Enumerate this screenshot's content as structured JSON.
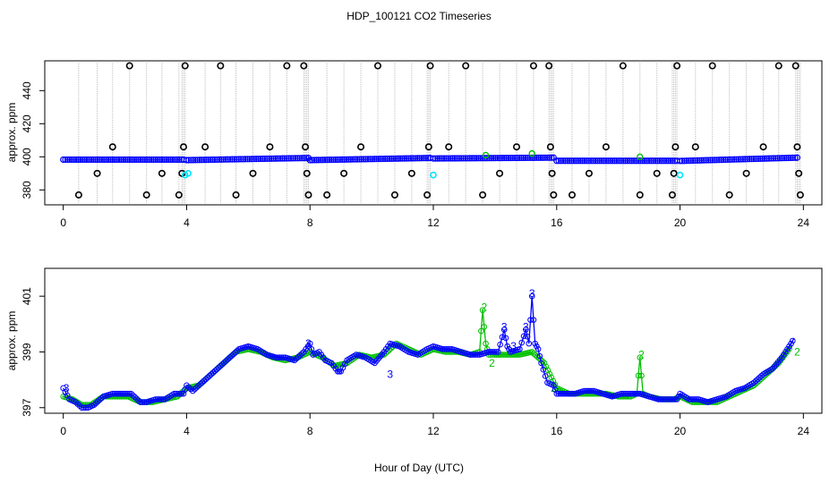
{
  "figure": {
    "title": "HDP_100121  CO2 Timeseries",
    "xlabel": "Hour of Day (UTC)"
  },
  "colors": {
    "frame": "#000000",
    "vertical_lines": "#bdbdbd",
    "series_blue": "#0000ff",
    "series_green": "#00c000",
    "series_cyan": "#00e5ff",
    "outlier_markers": "#000000"
  },
  "chart_data": [
    {
      "type": "scatter",
      "name": "top",
      "ylabel": "approx. ppm",
      "xlim": [
        -0.6,
        24.6
      ],
      "ylim": [
        371,
        458
      ],
      "x_ticks": [
        0,
        4,
        8,
        12,
        16,
        20,
        24
      ],
      "y_ticks": [
        380,
        400,
        420,
        440
      ],
      "baseline_segments": [
        {
          "x_start": 0.0,
          "x_end": 3.9,
          "y_start": 398.3,
          "y_end": 398.3
        },
        {
          "x_start": 4.0,
          "x_end": 7.95,
          "y_start": 398.0,
          "y_end": 399.3
        },
        {
          "x_start": 8.0,
          "x_end": 11.9,
          "y_start": 398.0,
          "y_end": 399.3
        },
        {
          "x_start": 12.0,
          "x_end": 15.9,
          "y_start": 399.0,
          "y_end": 399.5
        },
        {
          "x_start": 16.0,
          "x_end": 19.9,
          "y_start": 397.6,
          "y_end": 397.6
        },
        {
          "x_start": 20.0,
          "x_end": 23.8,
          "y_start": 397.5,
          "y_end": 399.5
        }
      ],
      "outlier_points": [
        {
          "x": 0.5,
          "y": 377
        },
        {
          "x": 1.1,
          "y": 390
        },
        {
          "x": 1.6,
          "y": 406
        },
        {
          "x": 2.15,
          "y": 455
        },
        {
          "x": 2.7,
          "y": 377
        },
        {
          "x": 3.2,
          "y": 390
        },
        {
          "x": 3.75,
          "y": 377
        },
        {
          "x": 3.85,
          "y": 390
        },
        {
          "x": 3.9,
          "y": 406
        },
        {
          "x": 3.95,
          "y": 455
        },
        {
          "x": 4.6,
          "y": 406
        },
        {
          "x": 5.1,
          "y": 455
        },
        {
          "x": 5.6,
          "y": 377
        },
        {
          "x": 6.15,
          "y": 390
        },
        {
          "x": 6.7,
          "y": 406
        },
        {
          "x": 7.25,
          "y": 455
        },
        {
          "x": 7.8,
          "y": 455
        },
        {
          "x": 7.85,
          "y": 406
        },
        {
          "x": 7.9,
          "y": 390
        },
        {
          "x": 7.95,
          "y": 377
        },
        {
          "x": 8.55,
          "y": 377
        },
        {
          "x": 9.1,
          "y": 390
        },
        {
          "x": 9.65,
          "y": 406
        },
        {
          "x": 10.2,
          "y": 455
        },
        {
          "x": 10.75,
          "y": 377
        },
        {
          "x": 11.3,
          "y": 390
        },
        {
          "x": 11.8,
          "y": 377
        },
        {
          "x": 11.85,
          "y": 406
        },
        {
          "x": 11.9,
          "y": 455
        },
        {
          "x": 12.5,
          "y": 406
        },
        {
          "x": 13.05,
          "y": 455
        },
        {
          "x": 13.6,
          "y": 377
        },
        {
          "x": 14.15,
          "y": 390
        },
        {
          "x": 14.7,
          "y": 406
        },
        {
          "x": 15.25,
          "y": 455
        },
        {
          "x": 15.75,
          "y": 455
        },
        {
          "x": 15.8,
          "y": 406
        },
        {
          "x": 15.85,
          "y": 390
        },
        {
          "x": 15.9,
          "y": 377
        },
        {
          "x": 16.5,
          "y": 377
        },
        {
          "x": 17.05,
          "y": 390
        },
        {
          "x": 17.6,
          "y": 406
        },
        {
          "x": 18.15,
          "y": 455
        },
        {
          "x": 18.7,
          "y": 377
        },
        {
          "x": 19.25,
          "y": 390
        },
        {
          "x": 19.75,
          "y": 377
        },
        {
          "x": 19.8,
          "y": 390
        },
        {
          "x": 19.85,
          "y": 406
        },
        {
          "x": 19.9,
          "y": 455
        },
        {
          "x": 20.5,
          "y": 406
        },
        {
          "x": 21.05,
          "y": 455
        },
        {
          "x": 21.6,
          "y": 377
        },
        {
          "x": 22.15,
          "y": 390
        },
        {
          "x": 22.7,
          "y": 406
        },
        {
          "x": 23.2,
          "y": 455
        },
        {
          "x": 23.75,
          "y": 455
        },
        {
          "x": 23.8,
          "y": 406
        },
        {
          "x": 23.85,
          "y": 390
        },
        {
          "x": 23.9,
          "y": 377
        }
      ],
      "cyan_points": [
        {
          "x": 3.95,
          "y": 389
        },
        {
          "x": 4.05,
          "y": 390
        },
        {
          "x": 12.0,
          "y": 389
        },
        {
          "x": 20.0,
          "y": 389
        }
      ],
      "green_points": [
        {
          "x": 13.7,
          "y": 401
        },
        {
          "x": 15.2,
          "y": 402
        },
        {
          "x": 18.7,
          "y": 400
        }
      ]
    },
    {
      "type": "line",
      "name": "bottom",
      "ylabel": "approx. ppm",
      "xlim": [
        -0.6,
        24.6
      ],
      "ylim": [
        396.8,
        402.0
      ],
      "x_ticks": [
        0,
        4,
        8,
        12,
        16,
        20,
        24
      ],
      "y_ticks": [
        397,
        399,
        401
      ],
      "series": [
        {
          "color_key": "series_blue",
          "x": [
            0.0,
            0.2,
            0.4,
            0.6,
            0.8,
            1.0,
            1.3,
            1.6,
            1.9,
            2.2,
            2.5,
            2.7,
            3.0,
            3.3,
            3.6,
            3.9,
            4.0,
            4.2,
            4.5,
            4.8,
            5.1,
            5.4,
            5.7,
            6.0,
            6.3,
            6.6,
            6.9,
            7.2,
            7.5,
            7.8,
            8.0,
            8.1,
            8.3,
            8.5,
            8.7,
            8.9,
            9.0,
            9.2,
            9.5,
            9.8,
            10.1,
            10.4,
            10.6,
            10.9,
            11.2,
            11.5,
            11.8,
            12.0,
            12.3,
            12.6,
            12.9,
            13.2,
            13.5,
            13.8,
            14.1,
            14.3,
            14.4,
            14.5,
            14.8,
            15.0,
            15.1,
            15.2,
            15.3,
            15.4,
            15.5,
            15.7,
            15.9,
            16.0,
            16.3,
            16.6,
            16.9,
            17.2,
            17.5,
            17.8,
            18.1,
            18.4,
            18.7,
            19.0,
            19.3,
            19.6,
            19.9,
            20.0,
            20.3,
            20.6,
            20.9,
            21.2,
            21.5,
            21.8,
            22.1,
            22.4,
            22.7,
            23.0,
            23.3,
            23.6,
            23.7
          ],
          "y": [
            397.7,
            397.3,
            397.2,
            397.0,
            397.0,
            397.1,
            397.4,
            397.5,
            397.5,
            397.5,
            397.2,
            397.2,
            397.3,
            397.3,
            397.5,
            397.5,
            397.8,
            397.6,
            397.9,
            398.2,
            398.5,
            398.8,
            399.1,
            399.2,
            399.1,
            398.9,
            398.8,
            398.8,
            398.7,
            399.0,
            399.3,
            398.9,
            399.0,
            398.7,
            398.6,
            398.3,
            398.3,
            398.7,
            398.9,
            398.8,
            398.6,
            399.0,
            399.3,
            399.2,
            399.0,
            398.9,
            399.1,
            399.2,
            399.1,
            399.1,
            399.0,
            398.9,
            398.9,
            399.0,
            399.0,
            399.8,
            399.2,
            399.0,
            399.1,
            399.8,
            399.3,
            401.0,
            399.3,
            399.1,
            398.6,
            397.9,
            397.8,
            397.5,
            397.5,
            397.5,
            397.6,
            397.6,
            397.5,
            397.4,
            397.5,
            397.5,
            397.5,
            397.4,
            397.3,
            397.3,
            397.3,
            397.5,
            397.3,
            397.3,
            397.2,
            397.3,
            397.4,
            397.6,
            397.7,
            397.9,
            398.2,
            398.4,
            398.8,
            399.3,
            399.5
          ],
          "labels": [
            {
              "x": 0.1,
              "y": 397.7,
              "text": "3"
            },
            {
              "x": 7.95,
              "y": 399.3,
              "text": "3"
            },
            {
              "x": 10.6,
              "y": 398.2,
              "text": "3"
            },
            {
              "x": 14.3,
              "y": 399.9,
              "text": "3"
            },
            {
              "x": 14.6,
              "y": 399.2,
              "text": "3"
            },
            {
              "x": 15.0,
              "y": 399.9,
              "text": "3"
            },
            {
              "x": 15.2,
              "y": 401.1,
              "text": "3"
            }
          ]
        },
        {
          "color_key": "series_green",
          "x": [
            0.0,
            0.3,
            0.6,
            0.9,
            1.3,
            1.7,
            2.1,
            2.5,
            2.9,
            3.3,
            3.7,
            4.0,
            4.4,
            4.8,
            5.2,
            5.6,
            6.0,
            6.4,
            6.8,
            7.2,
            7.6,
            8.0,
            8.4,
            8.8,
            9.2,
            9.6,
            10.0,
            10.4,
            10.8,
            11.2,
            11.6,
            12.0,
            12.4,
            12.8,
            13.2,
            13.5,
            13.6,
            13.7,
            13.8,
            14.0,
            14.4,
            14.8,
            15.2,
            15.6,
            16.0,
            16.4,
            16.8,
            17.2,
            17.6,
            18.0,
            18.4,
            18.6,
            18.7,
            18.8,
            19.0,
            19.4,
            19.8,
            20.0,
            20.4,
            20.8,
            21.2,
            21.6,
            22.0,
            22.4,
            22.8,
            23.2,
            23.6
          ],
          "y": [
            397.4,
            397.3,
            397.1,
            397.1,
            397.4,
            397.4,
            397.4,
            397.2,
            397.2,
            397.3,
            397.4,
            397.7,
            397.8,
            398.2,
            398.6,
            399.0,
            399.1,
            399.0,
            398.8,
            398.7,
            398.8,
            399.0,
            398.8,
            398.5,
            398.6,
            398.9,
            398.8,
            398.9,
            399.3,
            399.1,
            398.9,
            399.1,
            399.0,
            399.0,
            398.9,
            399.0,
            400.5,
            399.3,
            398.9,
            398.9,
            398.9,
            398.9,
            399.0,
            398.6,
            397.7,
            397.5,
            397.5,
            397.5,
            397.5,
            397.4,
            397.4,
            397.5,
            398.8,
            397.5,
            397.4,
            397.3,
            397.3,
            397.4,
            397.2,
            397.2,
            397.2,
            397.4,
            397.6,
            397.8,
            398.2,
            398.6,
            399.2
          ],
          "labels": [
            {
              "x": 13.65,
              "y": 400.6,
              "text": "2"
            },
            {
              "x": 18.75,
              "y": 398.9,
              "text": "2"
            },
            {
              "x": 13.9,
              "y": 398.6,
              "text": "2"
            },
            {
              "x": 15.9,
              "y": 397.7,
              "text": "2"
            },
            {
              "x": 23.8,
              "y": 399.0,
              "text": "2"
            }
          ]
        }
      ]
    }
  ]
}
